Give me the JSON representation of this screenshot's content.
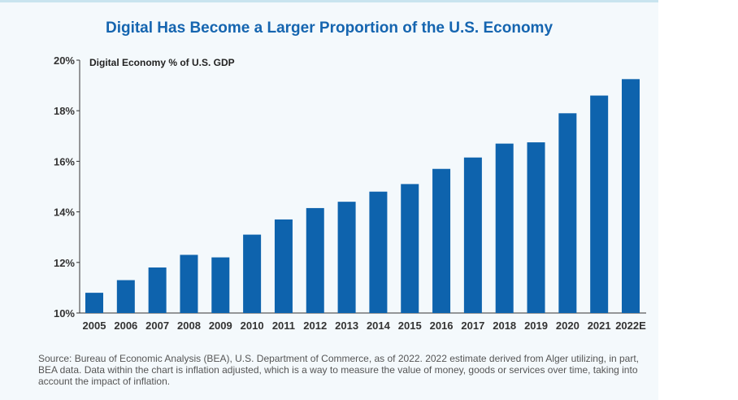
{
  "title": "Digital Has Become a Larger Proportion of the U.S. Economy",
  "source_note": "Source: Bureau of Economic Analysis (BEA), U.S. Department of Commerce, as of 2022. 2022 estimate derived from Alger utilizing, in part, BEA data. Data within the chart is inflation adjusted, which is a way to measure the value of money, goods or services over time, taking into account the impact of inflation.",
  "colors": {
    "bar": "#0e63ad",
    "title": "#1565b0",
    "axis": "#333333"
  },
  "chart_data": {
    "type": "bar",
    "series_label": "Digital Economy % of U.S. GDP",
    "categories": [
      "2005",
      "2006",
      "2007",
      "2008",
      "2009",
      "2010",
      "2011",
      "2012",
      "2013",
      "2014",
      "2015",
      "2016",
      "2017",
      "2018",
      "2019",
      "2020",
      "2021",
      "2022E"
    ],
    "values": [
      10.8,
      11.3,
      11.8,
      12.3,
      12.2,
      13.1,
      13.7,
      14.15,
      14.4,
      14.8,
      15.1,
      15.7,
      16.15,
      16.7,
      16.75,
      17.9,
      18.6,
      19.25
    ],
    "yticks": [
      10,
      12,
      14,
      16,
      18,
      20
    ],
    "ytick_suffix": "%",
    "ylim": [
      10,
      20
    ],
    "grid": false
  }
}
